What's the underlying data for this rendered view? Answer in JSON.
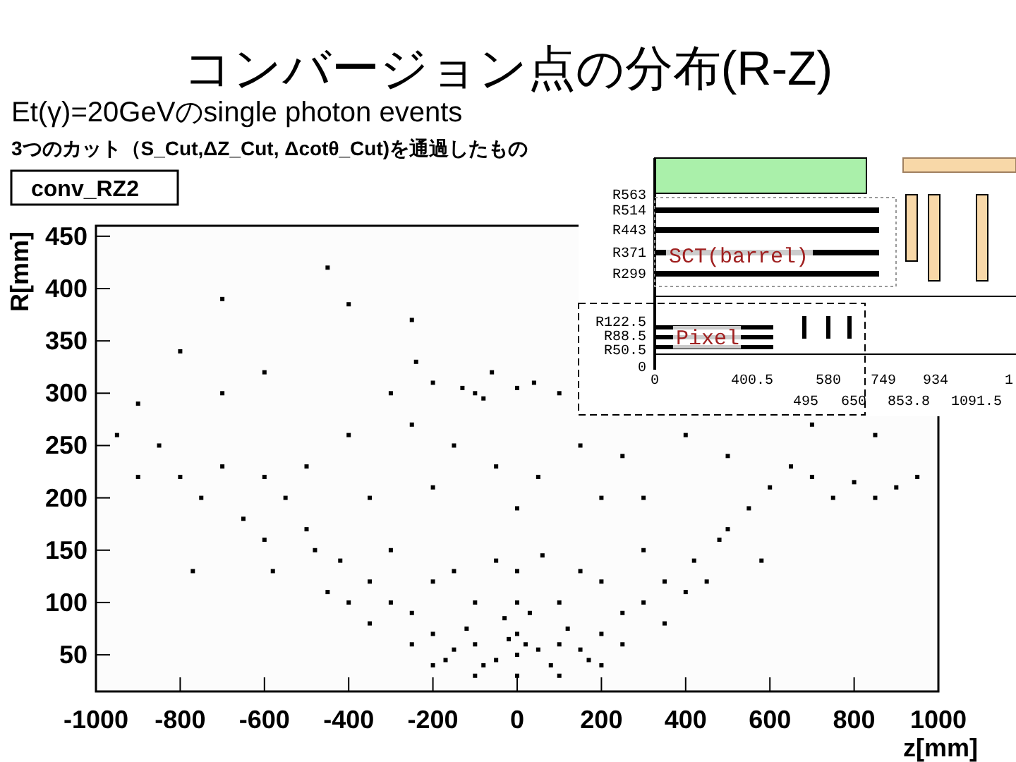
{
  "chart_data": {
    "type": "scatter",
    "title": "コンバージョン点の分布(R-Z)",
    "subtitle": "Et(γ)=20GeVのsingle photon events",
    "xlabel": "z[mm]",
    "ylabel": "R[mm]",
    "annotations": [
      "3つのカット（S_Cut,ΔZ_Cut, Δcotθ_Cut)を通過したもの",
      "conv_RZ2",
      "R563",
      "R514",
      "R443",
      "R371",
      "R299",
      "SCT(barrel)",
      "R122.5",
      "R88.5",
      "R50.5",
      "0",
      "Pixel",
      "0",
      "400.5",
      "580",
      "749",
      "934",
      "1",
      "495",
      "650",
      "853.8",
      "1091.5"
    ],
    "xlim": [
      -1000,
      1000
    ],
    "ylim": [
      15,
      460
    ],
    "xticks": [
      -1000,
      -800,
      -600,
      -400,
      -200,
      0,
      200,
      400,
      600,
      800,
      1000
    ],
    "yticks": [
      50,
      100,
      150,
      200,
      250,
      300,
      350,
      400,
      450
    ],
    "marker": "square",
    "grid": false,
    "series": [
      {
        "color": "#000000",
        "x": [
          0,
          -50,
          50,
          -100,
          100,
          0,
          -30,
          30,
          80,
          -80,
          150,
          -150,
          0,
          -100,
          100,
          200,
          -200,
          -250,
          250,
          0,
          -50,
          60,
          -150,
          150,
          -300,
          300,
          -350,
          350,
          -400,
          400,
          -420,
          420,
          -300,
          300,
          -200,
          200,
          -250,
          250,
          -350,
          350,
          -450,
          450,
          -200,
          200,
          0,
          -100,
          100,
          20,
          -20,
          120,
          -120,
          170,
          -170,
          -500,
          500,
          -550,
          550,
          -600,
          600,
          -650,
          650,
          -700,
          700,
          -750,
          750,
          -800,
          800,
          -850,
          850,
          -900,
          900,
          -950,
          950,
          -500,
          500,
          -480,
          480,
          -600,
          -580,
          580,
          -770,
          -300,
          -200,
          -100,
          0,
          100,
          -250,
          -150,
          150,
          250,
          -50,
          50,
          -400,
          400,
          -700,
          -800,
          -600,
          -450,
          -400,
          -250,
          -700,
          -900,
          200,
          -200,
          0,
          300,
          -350,
          700,
          850,
          -130,
          -80,
          40,
          -240,
          -60
        ],
        "values": [
          50,
          45,
          55,
          60,
          60,
          70,
          85,
          90,
          40,
          40,
          55,
          55,
          100,
          100,
          100,
          70,
          70,
          90,
          90,
          130,
          140,
          145,
          130,
          130,
          100,
          100,
          120,
          120,
          100,
          110,
          140,
          140,
          150,
          150,
          120,
          120,
          60,
          60,
          80,
          80,
          110,
          120,
          40,
          40,
          30,
          30,
          30,
          60,
          65,
          75,
          75,
          45,
          45,
          170,
          170,
          200,
          190,
          220,
          210,
          180,
          230,
          230,
          220,
          200,
          200,
          220,
          215,
          250,
          200,
          220,
          210,
          260,
          220,
          230,
          240,
          150,
          160,
          160,
          130,
          140,
          130,
          300,
          310,
          300,
          305,
          300,
          270,
          250,
          250,
          240,
          230,
          220,
          260,
          260,
          300,
          340,
          320,
          420,
          385,
          370,
          390,
          290,
          200,
          210,
          190,
          200,
          200,
          270,
          260,
          305,
          295,
          310,
          330,
          320
        ]
      }
    ]
  }
}
